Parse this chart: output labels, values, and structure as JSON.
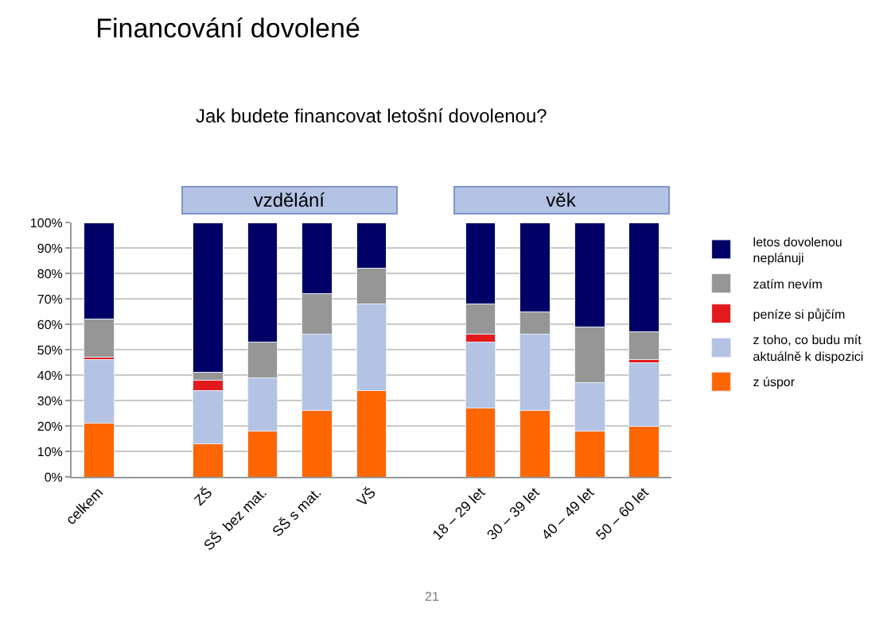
{
  "chart_data": {
    "type": "bar",
    "stacked": true,
    "title": "Financování dovolené",
    "subtitle": "Jak budete financovat letošní dovolenou?",
    "categories": [
      "celkem",
      null,
      "ZŠ",
      "SŠ  bez mat.",
      "SŠ s mat.",
      "VŠ",
      null,
      "18 – 29 let",
      "30 – 39 let",
      "40 – 49 let",
      "50 – 60 let"
    ],
    "series": [
      {
        "name": "z úspor",
        "color": "#ff6600",
        "values": [
          21,
          null,
          13,
          18,
          26,
          34,
          null,
          27,
          26,
          18,
          20
        ]
      },
      {
        "name": "z toho, co budu mít aktuálně k dispozici",
        "color": "#b4c3e4",
        "values": [
          25,
          null,
          21,
          21,
          30,
          34,
          null,
          26,
          30,
          19,
          25
        ]
      },
      {
        "name": "peníze si půjčím",
        "color": "#e31a1c",
        "values": [
          1,
          null,
          4,
          0,
          0,
          0,
          null,
          3,
          0,
          0,
          1
        ]
      },
      {
        "name": "zatím nevím",
        "color": "#969696",
        "values": [
          15,
          null,
          3,
          14,
          16,
          14,
          null,
          12,
          9,
          22,
          11
        ]
      },
      {
        "name": "letos dovolenou neplánuji",
        "color": "#000066",
        "values": [
          38,
          null,
          59,
          47,
          28,
          18,
          null,
          32,
          35,
          41,
          43
        ]
      }
    ],
    "ylim": [
      0,
      100
    ],
    "yticks": [
      {
        "value": 0,
        "label": "0%"
      },
      {
        "value": 10,
        "label": "10%"
      },
      {
        "value": 20,
        "label": "20%"
      },
      {
        "value": 30,
        "label": "30%"
      },
      {
        "value": 40,
        "label": "40%"
      },
      {
        "value": 50,
        "label": "50%"
      },
      {
        "value": 60,
        "label": "60%"
      },
      {
        "value": 70,
        "label": "70%"
      },
      {
        "value": 80,
        "label": "80%"
      },
      {
        "value": 90,
        "label": "90%"
      },
      {
        "value": 100,
        "label": "100%"
      }
    ],
    "grid": "y",
    "legend": "right",
    "annotations": [
      "vzdělání",
      "věk",
      "21"
    ]
  }
}
